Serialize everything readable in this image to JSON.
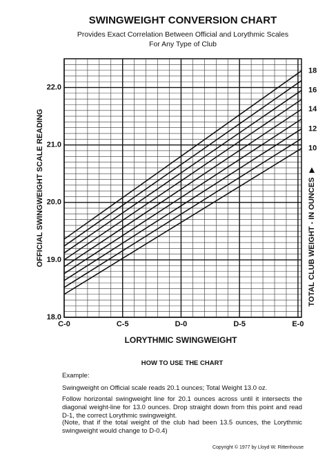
{
  "chart_data": {
    "type": "line",
    "title": "SWINGWEIGHT CONVERSION CHART",
    "subtitle": [
      "Provides Exact Correlation Between Official and Lorythmic Scales",
      "For Any Type of Club"
    ],
    "xlabel": "LORYTHMIC SWINGWEIGHT",
    "ylabel": "OFFICIAL SWINGWEIGHT SCALE READING",
    "y2label": "TOTAL CLUB WEIGHT - IN OUNCES",
    "x": [
      0,
      20.3
    ],
    "xlim": [
      0,
      20.3
    ],
    "xticks": [
      {
        "value": 0,
        "label": "C-0"
      },
      {
        "value": 5,
        "label": "C-5"
      },
      {
        "value": 10,
        "label": "D-0"
      },
      {
        "value": 15,
        "label": "D-5"
      },
      {
        "value": 20,
        "label": "E-0"
      }
    ],
    "ylim": [
      18,
      22.5
    ],
    "yticks": [
      {
        "value": 18,
        "label": "18.0"
      },
      {
        "value": 19,
        "label": "19.0"
      },
      {
        "value": 20,
        "label": "20.0"
      },
      {
        "value": 21,
        "label": "21.0"
      },
      {
        "value": 22,
        "label": "22.0"
      }
    ],
    "grid": true,
    "color": "#111111",
    "series": [
      {
        "name": "10",
        "values": [
          18.4,
          20.94
        ]
      },
      {
        "name": null,
        "values": [
          18.52,
          21.11
        ]
      },
      {
        "name": "12",
        "values": [
          18.64,
          21.28
        ]
      },
      {
        "name": null,
        "values": [
          18.76,
          21.45
        ]
      },
      {
        "name": "14",
        "values": [
          18.88,
          21.62
        ]
      },
      {
        "name": null,
        "values": [
          19.0,
          21.79
        ]
      },
      {
        "name": "16",
        "values": [
          19.12,
          21.95
        ]
      },
      {
        "name": null,
        "values": [
          19.24,
          22.12
        ]
      },
      {
        "name": "18",
        "values": [
          19.36,
          22.29
        ]
      }
    ]
  },
  "instructions": {
    "heading": "HOW TO USE THE CHART",
    "example_label": "Example:",
    "paragraphs": [
      "Swingweight on Official scale reads 20.1 ounces; Total Weight 13.0 oz.",
      "Follow horizontal swingweight line for 20.1 ounces across until it intersects the diagonal weight-line for 13.0 ounces. Drop straight down from this point and read D-1, the correct Lorythmic swingweight.",
      "(Note, that if the total weight of the club had been 13.5 ounces, the Lorythmic swingweight would change to D-0.4)"
    ],
    "copyright": "Copyright © 1977 by Lloyd W. Rittenhouse"
  }
}
